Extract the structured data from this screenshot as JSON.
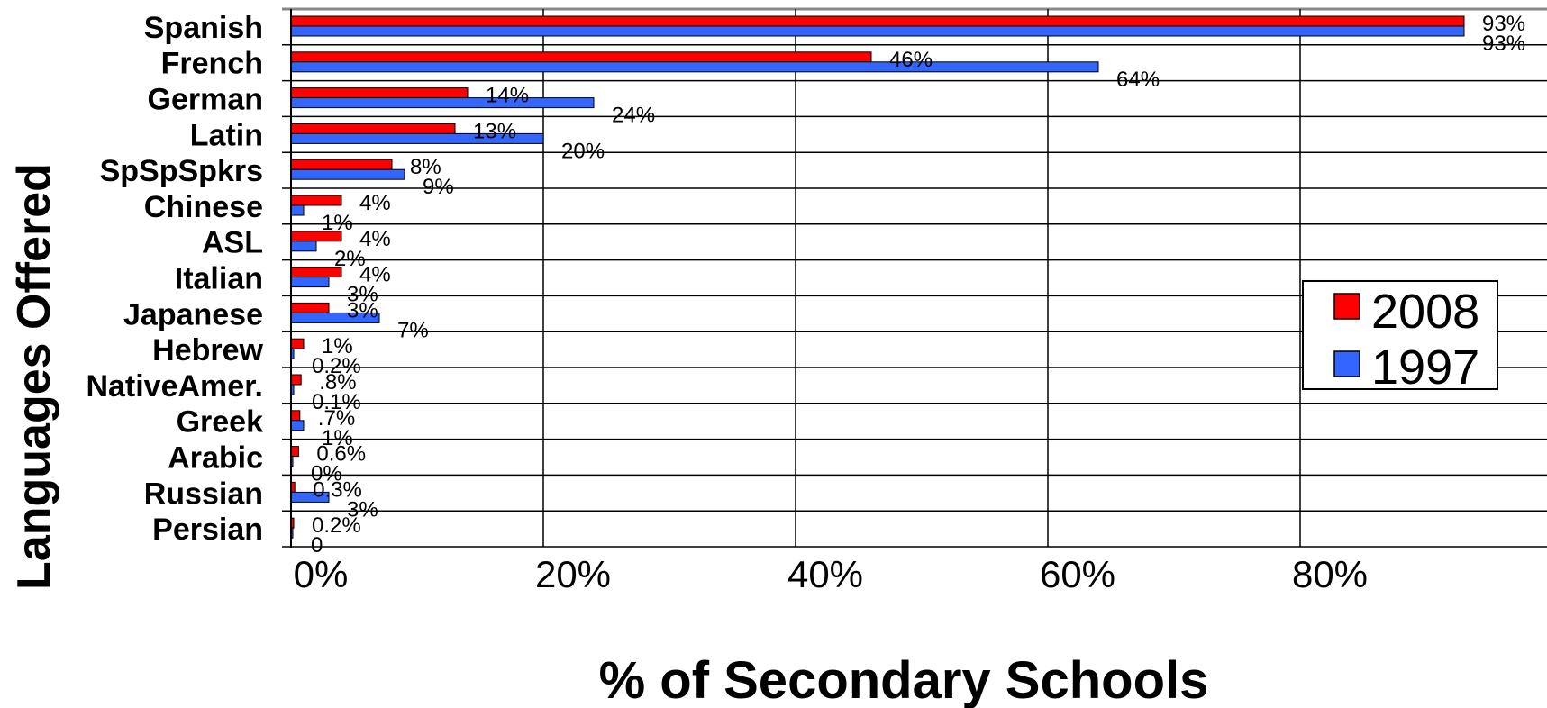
{
  "chart_data": {
    "type": "bar",
    "orientation": "horizontal",
    "categories": [
      "Spanish",
      "French",
      "German",
      "Latin",
      "SpSpSpkrs",
      "Chinese",
      "ASL",
      "Italian",
      "Japanese",
      "Hebrew",
      "NativeAmer.",
      "Greek",
      "Arabic",
      "Russian",
      "Persian"
    ],
    "series": [
      {
        "name": "2008",
        "color": "#ff0000",
        "values": [
          93,
          46,
          14,
          13,
          8,
          4,
          4,
          4,
          3,
          1,
          0.8,
          0.7,
          0.6,
          0.3,
          0.2
        ],
        "labels": [
          "93%",
          "46%",
          "14%",
          "13%",
          "8%",
          "4%",
          "4%",
          "4%",
          "3%",
          "1%",
          ".8%",
          ".7%",
          "0.6%",
          "0.3%",
          "0.2%"
        ]
      },
      {
        "name": "1997",
        "color": "#3366ff",
        "values": [
          93,
          64,
          24,
          20,
          9,
          1,
          2,
          3,
          7,
          0.2,
          0.1,
          1,
          0,
          3,
          0
        ],
        "labels": [
          "93%",
          "64%",
          "24%",
          "20%",
          "9%",
          "1%",
          "2%",
          "3%",
          "7%",
          "0.2%",
          "0.1%",
          "1%",
          "0%",
          "3%",
          "0"
        ]
      }
    ],
    "xlim": [
      0,
      100
    ],
    "xticks": [
      0,
      20,
      40,
      60,
      80
    ],
    "xtick_labels": [
      "0%",
      "20%",
      "40%",
      "60%",
      "80%"
    ],
    "xlabel": "% of Secondary Schools",
    "ylabel": "Languages Offered",
    "grid": true,
    "legend_position": "right"
  }
}
